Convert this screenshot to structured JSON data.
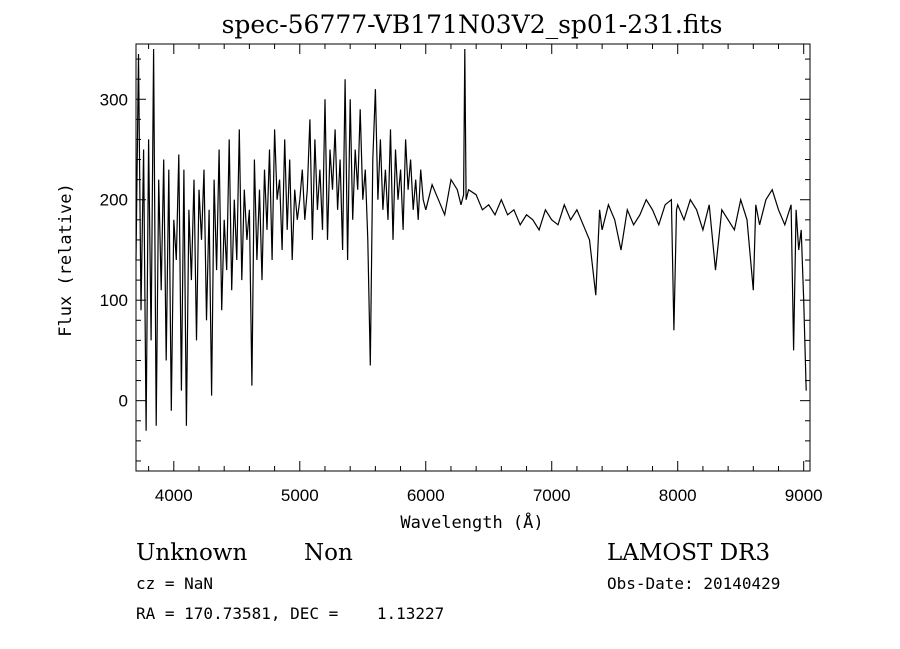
{
  "title": "spec-56777-VB171N03V2_sp01-231.fits",
  "info": {
    "class": "Unknown",
    "subclass": "Non",
    "survey": "LAMOST DR3",
    "cz": "cz = NaN",
    "obs_date": "Obs-Date: 20140429",
    "coords": "RA = 170.73581, DEC =    1.13227"
  },
  "chart_data": {
    "type": "line",
    "title": "spec-56777-VB171N03V2_sp01-231.fits",
    "xlabel": "Wavelength (Å)",
    "ylabel": "Flux (relative)",
    "xlim": [
      3700,
      9050
    ],
    "ylim": [
      -70,
      355
    ],
    "xticks": [
      4000,
      5000,
      6000,
      7000,
      8000,
      9000
    ],
    "yticks": [
      0,
      100,
      200,
      300
    ],
    "grid": false,
    "line_color": "#000000",
    "series": [
      {
        "x": [
          3700,
          3720,
          3740,
          3760,
          3780,
          3800,
          3820,
          3840,
          3860,
          3880,
          3900,
          3920,
          3940,
          3960,
          3980,
          4000,
          4020,
          4040,
          4060,
          4080,
          4100,
          4120,
          4140,
          4160,
          4180,
          4200,
          4220,
          4240,
          4260,
          4280,
          4300,
          4320,
          4340,
          4360,
          4380,
          4400,
          4420,
          4440,
          4460,
          4480,
          4500,
          4520,
          4540,
          4560,
          4580,
          4600,
          4620,
          4640,
          4660,
          4680,
          4700,
          4720,
          4740,
          4760,
          4780,
          4800,
          4820,
          4840,
          4860,
          4880,
          4900,
          4920,
          4940,
          4960,
          4980,
          5000,
          5020,
          5040,
          5060,
          5080,
          5100,
          5120,
          5140,
          5160,
          5180,
          5200,
          5220,
          5240,
          5260,
          5280,
          5300,
          5320,
          5340,
          5360,
          5380,
          5400,
          5420,
          5440,
          5460,
          5480,
          5500,
          5520,
          5540,
          5560,
          5580,
          5600,
          5620,
          5640,
          5660,
          5680,
          5700,
          5720,
          5740,
          5760,
          5780,
          5800,
          5820,
          5840,
          5860,
          5880,
          5900,
          5920,
          5940,
          5960,
          5980,
          6000,
          6050,
          6100,
          6150,
          6200,
          6250,
          6280,
          6300,
          6310,
          6320,
          6340,
          6400,
          6450,
          6500,
          6550,
          6600,
          6650,
          6700,
          6750,
          6800,
          6850,
          6900,
          6950,
          7000,
          7050,
          7100,
          7150,
          7200,
          7250,
          7300,
          7350,
          7380,
          7400,
          7450,
          7500,
          7550,
          7600,
          7650,
          7700,
          7750,
          7800,
          7850,
          7900,
          7950,
          7970,
          7990,
          8000,
          8050,
          8100,
          8150,
          8200,
          8250,
          8300,
          8350,
          8400,
          8450,
          8500,
          8550,
          8600,
          8620,
          8650,
          8700,
          8750,
          8800,
          8850,
          8900,
          8920,
          8940,
          8960,
          8980,
          9000,
          9020
        ],
        "y": [
          140,
          345,
          90,
          250,
          -30,
          260,
          60,
          350,
          -25,
          220,
          110,
          240,
          40,
          230,
          -10,
          180,
          140,
          245,
          10,
          230,
          -25,
          190,
          120,
          220,
          60,
          210,
          160,
          230,
          80,
          190,
          5,
          220,
          130,
          250,
          90,
          180,
          130,
          260,
          110,
          200,
          140,
          270,
          120,
          210,
          160,
          190,
          15,
          240,
          140,
          210,
          120,
          230,
          170,
          250,
          140,
          270,
          200,
          220,
          150,
          260,
          170,
          240,
          140,
          210,
          180,
          200,
          230,
          180,
          210,
          280,
          160,
          260,
          190,
          230,
          170,
          300,
          160,
          250,
          210,
          270,
          190,
          240,
          150,
          320,
          140,
          300,
          180,
          250,
          210,
          290,
          200,
          230,
          160,
          35,
          240,
          310,
          200,
          260,
          190,
          230,
          180,
          270,
          160,
          250,
          200,
          230,
          170,
          260,
          210,
          240,
          190,
          220,
          180,
          230,
          200,
          190,
          215,
          200,
          185,
          220,
          210,
          195,
          205,
          350,
          200,
          210,
          205,
          190,
          195,
          185,
          200,
          185,
          190,
          175,
          185,
          180,
          170,
          190,
          180,
          175,
          195,
          180,
          190,
          175,
          160,
          105,
          190,
          170,
          195,
          180,
          150,
          190,
          175,
          185,
          200,
          190,
          175,
          195,
          200,
          70,
          190,
          195,
          180,
          200,
          190,
          170,
          195,
          130,
          190,
          180,
          170,
          200,
          180,
          110,
          195,
          175,
          200,
          210,
          190,
          175,
          195,
          50,
          190,
          150,
          170,
          100,
          10
        ]
      }
    ]
  }
}
